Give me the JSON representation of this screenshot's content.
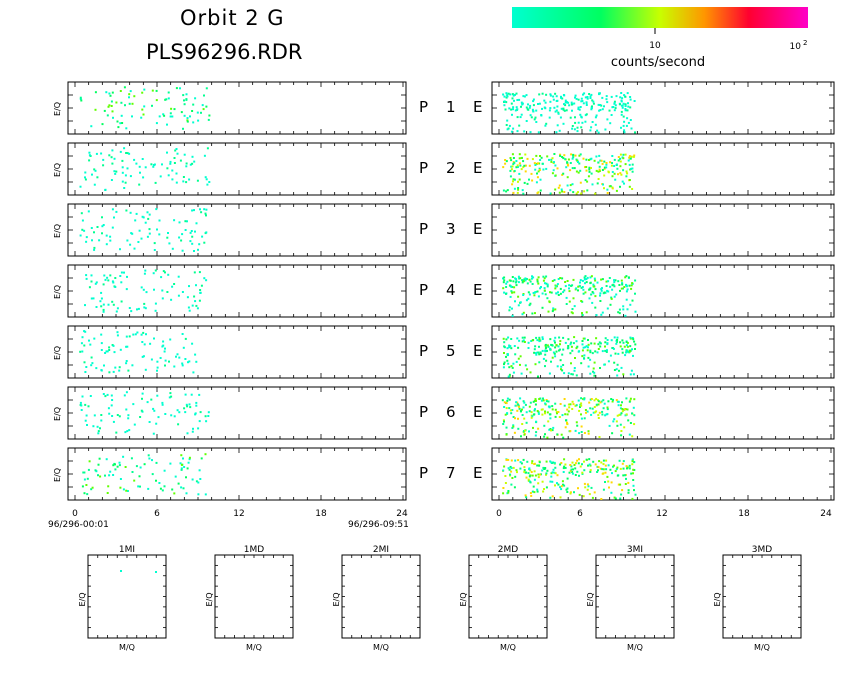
{
  "title": {
    "line1": "Orbit 2 G",
    "line2": "PLS96296.RDR"
  },
  "colorbar": {
    "label": "counts/second",
    "tick_10": "10",
    "tick_100_base": "10",
    "tick_100_exp": "2",
    "colors": [
      "#00ffd0",
      "#00ff60",
      "#c8ff00",
      "#ff9600",
      "#ff0040",
      "#ff00c8"
    ]
  },
  "left_time": {
    "start": "96/296-00:01",
    "end": "96/296-09:51"
  },
  "panels": [
    {
      "left": "P",
      "num": "1",
      "right": "E"
    },
    {
      "left": "P",
      "num": "2",
      "right": "E"
    },
    {
      "left": "P",
      "num": "3",
      "right": "E"
    },
    {
      "left": "P",
      "num": "4",
      "right": "E"
    },
    {
      "left": "P",
      "num": "5",
      "right": "E"
    },
    {
      "left": "P",
      "num": "6",
      "right": "E"
    },
    {
      "left": "P",
      "num": "7",
      "right": "E"
    }
  ],
  "y_axis_label": "E/Q",
  "mass_panels": [
    {
      "title": "1MI",
      "ylabel": "E/Q",
      "xlabel": "M/Q"
    },
    {
      "title": "1MD",
      "ylabel": "E/Q",
      "xlabel": "M/Q"
    },
    {
      "title": "2MI",
      "ylabel": "E/Q",
      "xlabel": "M/Q"
    },
    {
      "title": "2MD",
      "ylabel": "E/Q",
      "xlabel": "M/Q"
    },
    {
      "title": "3MI",
      "ylabel": "E/Q",
      "xlabel": "M/Q"
    },
    {
      "title": "3MD",
      "ylabel": "E/Q",
      "xlabel": "M/Q"
    }
  ],
  "chart_data": {
    "type": "heatmap",
    "xlim": [
      0,
      24
    ],
    "x_ticks": [
      "0",
      "6",
      "12",
      "18",
      "24"
    ],
    "data_extent_hours": [
      0,
      9.8
    ],
    "scale": "log counts/second",
    "left_column_activity": [
      {
        "panel": "P1",
        "hours": [
          0.3,
          9.8
        ],
        "level": "low-mid"
      },
      {
        "panel": "P2",
        "hours": [
          0.3,
          9.8
        ],
        "level": "low"
      },
      {
        "panel": "P3",
        "hours": [
          0.3,
          9.8
        ],
        "level": "low"
      },
      {
        "panel": "P4",
        "hours": [
          0.3,
          9.6
        ],
        "level": "low"
      },
      {
        "panel": "P5",
        "hours": [
          0.3,
          9.0
        ],
        "level": "low"
      },
      {
        "panel": "P6",
        "hours": [
          0.3,
          9.8
        ],
        "level": "low"
      },
      {
        "panel": "P7",
        "hours": [
          0.3,
          9.8
        ],
        "level": "low-mid"
      }
    ],
    "right_column_activity": [
      {
        "panel": "P1 E",
        "hours": [
          0.2,
          9.8
        ],
        "level": "low"
      },
      {
        "panel": "P2 E",
        "hours": [
          0.2,
          9.8
        ],
        "level": "mid"
      },
      {
        "panel": "P3 E",
        "hours": [],
        "level": "none"
      },
      {
        "panel": "P4 E",
        "hours": [
          0.2,
          9.8
        ],
        "level": "low-mid"
      },
      {
        "panel": "P5 E",
        "hours": [
          0.2,
          9.8
        ],
        "level": "low-mid"
      },
      {
        "panel": "P6 E",
        "hours": [
          0.2,
          9.8
        ],
        "level": "mid"
      },
      {
        "panel": "P7 E",
        "hours": [
          0.2,
          9.8
        ],
        "level": "mid"
      }
    ]
  }
}
